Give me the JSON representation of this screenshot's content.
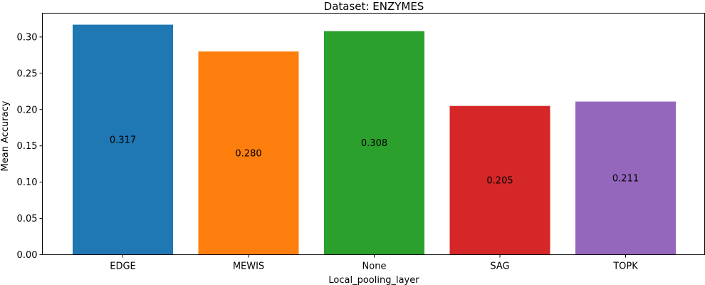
{
  "chart_data": {
    "type": "bar",
    "title": "Dataset: ENZYMES",
    "xlabel": "Local_pooling_layer",
    "ylabel": "Mean Accuracy",
    "categories": [
      "EDGE",
      "MEWIS",
      "None",
      "SAG",
      "TOPK"
    ],
    "values": [
      0.317,
      0.28,
      0.308,
      0.205,
      0.211
    ],
    "data_labels": [
      "0.317",
      "0.280",
      "0.308",
      "0.205",
      "0.211"
    ],
    "colors": [
      "#1f77b4",
      "#ff7f0e",
      "#2ca02c",
      "#d62728",
      "#9467bd"
    ],
    "ylim": [
      0,
      0.3328
    ],
    "yticks": [
      0.0,
      0.05,
      0.1,
      0.15,
      0.2,
      0.25,
      0.3
    ],
    "ytick_labels": [
      "0.00",
      "0.05",
      "0.10",
      "0.15",
      "0.20",
      "0.25",
      "0.30"
    ],
    "grid": false,
    "legend": "none"
  }
}
